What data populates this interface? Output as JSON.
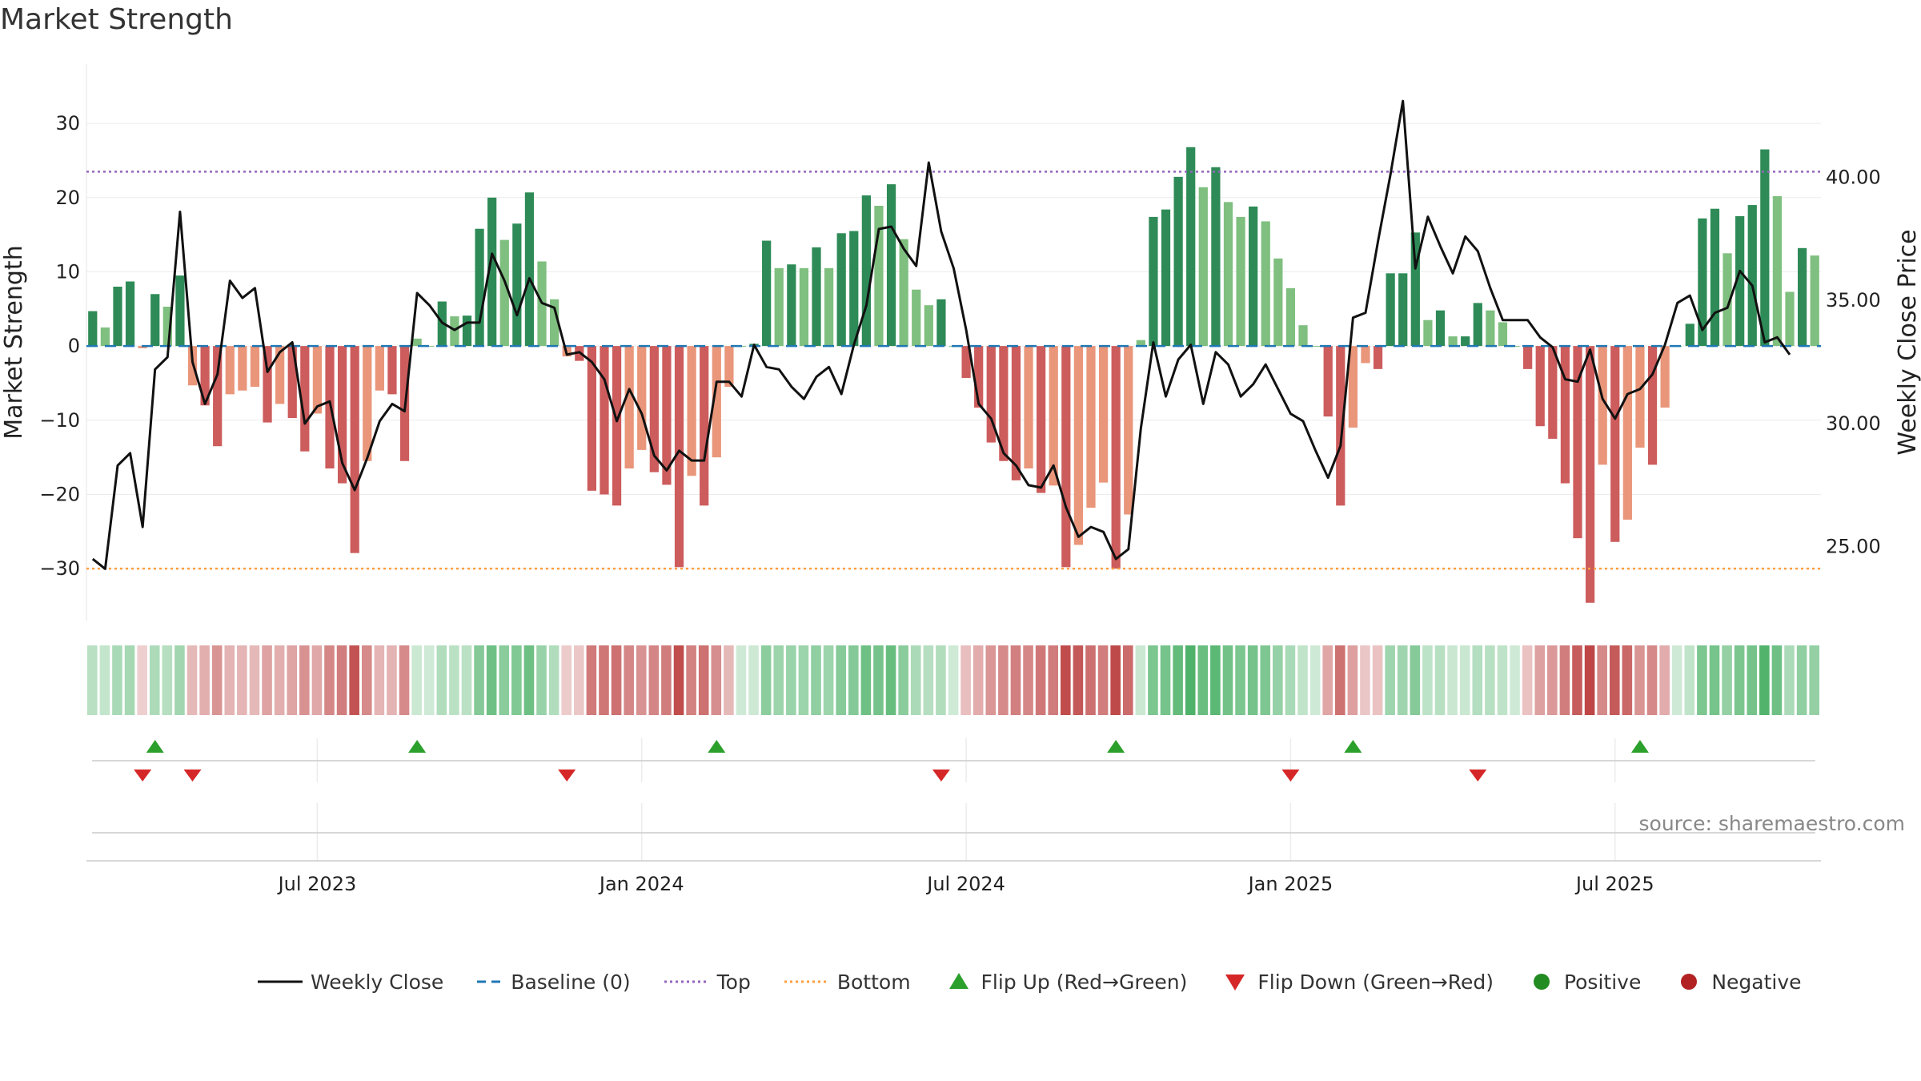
{
  "chart_data": {
    "type": "bar",
    "title": "Market Strength",
    "source": "source: sharemaestro.com",
    "ylabel": "Market Strength",
    "y2label": "Weekly Close Price",
    "ylim": [
      -37,
      38
    ],
    "y2lim": [
      22.0,
      44.6
    ],
    "yticks": [
      30,
      20,
      10,
      0,
      -10,
      -20,
      -30
    ],
    "ytick_labels": [
      "30",
      "20",
      "10",
      "0",
      "−10",
      "−20",
      "−30"
    ],
    "y2ticks": [
      40.0,
      35.0,
      30.0,
      25.0
    ],
    "y2tick_labels": [
      "40.00",
      "35.00",
      "30.00",
      "25.00"
    ],
    "top_line": 23.5,
    "bottom_line": -30,
    "baseline": 0,
    "x_tick_weeks": [
      18,
      44,
      70,
      96,
      122
    ],
    "x_tick_labels": [
      "Jul 2023",
      "Jan 2024",
      "Jul 2024",
      "Jan 2025",
      "Jul 2025"
    ],
    "strength": [
      4.7,
      2.5,
      8,
      8.7,
      -0.3,
      7,
      5.3,
      9.5,
      -5.3,
      -8,
      -13.5,
      -6.5,
      -6,
      -5.5,
      -10.3,
      -7.8,
      -9.7,
      -14.2,
      -9.1,
      -16.5,
      -18.5,
      -27.9,
      -15.5,
      -6,
      -6.5,
      -15.5,
      1,
      0,
      6,
      4,
      4.1,
      15.8,
      20,
      14.3,
      16.5,
      20.7,
      11.4,
      6.3,
      -1.4,
      -2,
      -19.5,
      -20,
      -21.5,
      -16.5,
      -14,
      -17,
      -18.7,
      -29.8,
      -17.5,
      -21.5,
      -15,
      -5.5,
      0,
      0.3,
      14.2,
      10.5,
      11,
      10.5,
      13.3,
      10.5,
      15.2,
      15.5,
      20.3,
      18.9,
      21.8,
      14.4,
      7.6,
      5.5,
      6.3,
      0,
      -4.3,
      -8.3,
      -13,
      -15.5,
      -18.1,
      -16.5,
      -19.8,
      -18.8,
      -29.8,
      -26.8,
      -21.8,
      -18.4,
      -30,
      -22.7,
      0.8,
      17.4,
      18.4,
      22.8,
      26.8,
      21.4,
      24.1,
      19.4,
      17.4,
      18.8,
      16.8,
      11.8,
      7.8,
      2.8,
      0,
      -9.5,
      -21.5,
      -11,
      -2.3,
      -3.1,
      9.8,
      9.8,
      15.3,
      3.5,
      4.8,
      1.3,
      1.3,
      5.8,
      4.8,
      3.2,
      0,
      -3.1,
      -10.8,
      -12.5,
      -18.5,
      -25.9,
      -34.6,
      -16,
      -26.4,
      -23.4,
      -13.7,
      -16,
      -8.3,
      0,
      3,
      17.2,
      18.5,
      12.5,
      17.5,
      19,
      26.5,
      20.2,
      7.3,
      13.2,
      12.2
    ],
    "weekly_close": [
      24.5,
      24.1,
      28.3,
      28.8,
      25.8,
      32.2,
      32.7,
      38.6,
      32.5,
      30.8,
      32,
      35.8,
      35.1,
      35.5,
      32.1,
      32.9,
      33.3,
      30,
      30.7,
      30.9,
      28.4,
      27.3,
      28.6,
      30.1,
      30.8,
      30.5,
      35.3,
      34.8,
      34.1,
      33.8,
      34.1,
      34.1,
      36.9,
      35.8,
      34.4,
      35.9,
      34.9,
      34.7,
      32.8,
      32.9,
      32.5,
      31.8,
      30.1,
      31.4,
      30.4,
      28.7,
      28.1,
      28.9,
      28.5,
      28.5,
      31.7,
      31.7,
      31.1,
      33.2,
      32.3,
      32.2,
      31.5,
      31,
      31.9,
      32.3,
      31.2,
      33.2,
      34.8,
      37.9,
      38,
      37.1,
      36.4,
      40.6,
      37.8,
      36.3,
      33.8,
      30.8,
      30.2,
      28.8,
      28.3,
      27.5,
      27.4,
      28.3,
      26.6,
      25.4,
      25.8,
      25.6,
      24.5,
      24.9,
      29.8,
      33.3,
      31.1,
      32.6,
      33.2,
      30.8,
      32.9,
      32.4,
      31.1,
      31.6,
      32.4,
      31.4,
      30.4,
      30.1,
      28.9,
      27.8,
      29.1,
      34.3,
      34.5,
      37.4,
      40.1,
      43.1,
      36.3,
      38.4,
      37.2,
      36.1,
      37.6,
      37,
      35.5,
      34.2,
      34.2,
      34.2,
      33.5,
      33.1,
      31.8,
      31.7,
      33,
      31,
      30.2,
      31.2,
      31.4,
      32,
      33.2,
      34.9,
      35.2,
      33.8,
      34.5,
      34.7,
      36.2,
      35.6,
      33.3,
      33.5,
      32.8
    ],
    "flip_up_weeks": [
      5,
      26,
      50,
      82,
      101,
      124
    ],
    "flip_down_weeks": [
      4,
      8,
      38,
      68,
      96,
      111
    ],
    "colors": {
      "pos_dark": "#2e8b57",
      "pos_light": "#7fbf7f",
      "neg_dark": "#cd5c5c",
      "neg_light": "#e9967a",
      "close": "#111111",
      "baseline": "#1f77b4",
      "top": "#9467bd",
      "bottom": "#ff9f40",
      "flip_up": "#2ca02c",
      "flip_down": "#d62728",
      "positive": "#228b22",
      "negative": "#b22222"
    },
    "legend": [
      {
        "label": "Weekly Close",
        "symbol": "line"
      },
      {
        "label": "Baseline (0)",
        "symbol": "dash"
      },
      {
        "label": "Top",
        "symbol": "dot-purple"
      },
      {
        "label": "Bottom",
        "symbol": "dot-orange"
      },
      {
        "label": "Flip Up (Red→Green)",
        "symbol": "tri-up"
      },
      {
        "label": "Flip Down (Green→Red)",
        "symbol": "tri-down"
      },
      {
        "label": "Positive",
        "symbol": "circle-green"
      },
      {
        "label": "Negative",
        "symbol": "circle-red"
      }
    ]
  }
}
